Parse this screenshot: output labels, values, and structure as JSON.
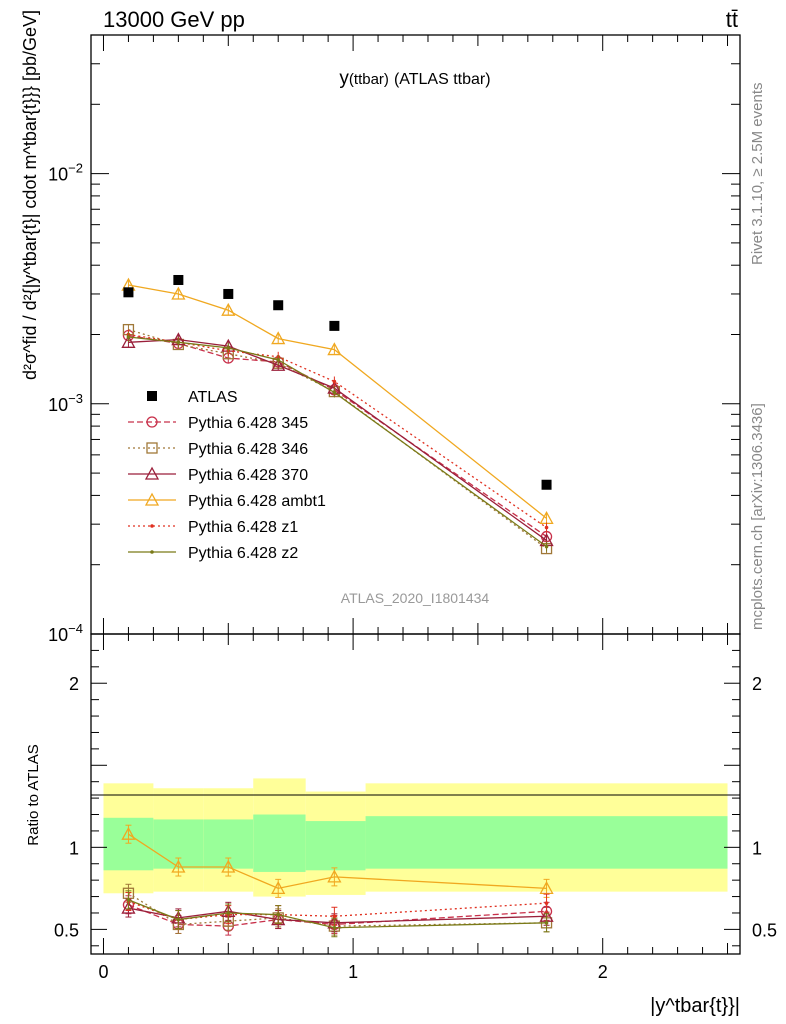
{
  "header": {
    "left": "13000 GeV pp",
    "right": "tt̄"
  },
  "side_labels": {
    "rivet": "Rivet 3.1.10, ≥ 2.5M events",
    "mcplots": "mcplots.cern.ch [arXiv:1306.3436]"
  },
  "chart_data": [
    {
      "type": "line",
      "panel": "main",
      "title_main": "y",
      "title_sub": "(ttbar)",
      "title_rest": "(ATLAS ttbar)",
      "analysis_label": "ATLAS_2020_I1801434",
      "ylabel": "d²σ^fid / d²{|y^tbar{t}| cdot m^tbar{t}}} [pb/GeV]",
      "yscale": "log",
      "ylim": [
        0.0001,
        0.04
      ],
      "xlim": [
        -0.05,
        2.55
      ],
      "ytick_labels": [
        "10^-4",
        "10^-3",
        "10^-2"
      ],
      "x": [
        0.1,
        0.3,
        0.5,
        0.7,
        0.925,
        1.775
      ],
      "legend_placement": "center-left",
      "series": [
        {
          "name": "ATLAS",
          "color": "#000000",
          "marker": "filled-square",
          "style": "none",
          "values": [
            0.00305,
            0.00345,
            0.003,
            0.00268,
            0.00218,
            0.000445
          ]
        },
        {
          "name": "Pythia 6.428 345",
          "color": "#c8304a",
          "marker": "open-circle",
          "style": "dashed",
          "values": [
            0.00198,
            0.00183,
            0.00158,
            0.00152,
            0.00115,
            0.000265
          ]
        },
        {
          "name": "Pythia 6.428 346",
          "color": "#a07838",
          "marker": "open-square",
          "style": "dotted",
          "values": [
            0.0021,
            0.00181,
            0.00165,
            0.0015,
            0.00113,
            0.000235
          ]
        },
        {
          "name": "Pythia 6.428 370",
          "color": "#9a1f3a",
          "marker": "open-triangle",
          "style": "solid",
          "values": [
            0.00185,
            0.0019,
            0.00178,
            0.00147,
            0.00117,
            0.000255
          ]
        },
        {
          "name": "Pythia 6.428 ambt1",
          "color": "#f0a820",
          "marker": "open-triangle",
          "style": "solid",
          "values": [
            0.00328,
            0.003,
            0.00255,
            0.00192,
            0.00172,
            0.000318
          ]
        },
        {
          "name": "Pythia 6.428 z1",
          "color": "#e03020",
          "marker": "small-dot",
          "style": "dotted",
          "values": [
            0.002,
            0.00185,
            0.0017,
            0.0016,
            0.00125,
            0.00029
          ]
        },
        {
          "name": "Pythia 6.428 z2",
          "color": "#7a7a18",
          "marker": "small-dot",
          "style": "solid",
          "values": [
            0.00195,
            0.00185,
            0.00175,
            0.00155,
            0.00112,
            0.00024
          ]
        }
      ]
    },
    {
      "type": "line",
      "panel": "ratio",
      "ylabel": "Ratio to ATLAS",
      "ylim": [
        0.35,
        2.3
      ],
      "xlim": [
        -0.05,
        2.55
      ],
      "ytick_labels": [
        "0.5",
        "1",
        "2"
      ],
      "xtick_labels": [
        "0",
        "1",
        "2"
      ],
      "xlabel": "|y^tbar{t}}|",
      "x": [
        0.1,
        0.3,
        0.5,
        0.7,
        0.925,
        1.775
      ],
      "bands": {
        "yellow_color": "#ffff99",
        "green_color": "#99ff99",
        "bins": [
          {
            "lo": 0.0,
            "hi": 0.2,
            "yellow": [
              0.72,
              1.39
            ],
            "green": [
              0.86,
              1.18
            ]
          },
          {
            "lo": 0.2,
            "hi": 0.4,
            "yellow": [
              0.73,
              1.36
            ],
            "green": [
              0.87,
              1.17
            ]
          },
          {
            "lo": 0.4,
            "hi": 0.6,
            "yellow": [
              0.73,
              1.36
            ],
            "green": [
              0.87,
              1.17
            ]
          },
          {
            "lo": 0.6,
            "hi": 0.81,
            "yellow": [
              0.7,
              1.42
            ],
            "green": [
              0.85,
              1.2
            ]
          },
          {
            "lo": 0.81,
            "hi": 1.05,
            "yellow": [
              0.71,
              1.34
            ],
            "green": [
              0.86,
              1.16
            ]
          },
          {
            "lo": 1.05,
            "hi": 2.5,
            "yellow": [
              0.73,
              1.39
            ],
            "green": [
              0.87,
              1.19
            ]
          }
        ]
      },
      "series": [
        {
          "name": "Pythia 6.428 345",
          "values": [
            0.65,
            0.53,
            0.52,
            0.56,
            0.53,
            0.61
          ]
        },
        {
          "name": "Pythia 6.428 346",
          "values": [
            0.72,
            0.53,
            0.55,
            0.57,
            0.52,
            0.54
          ]
        },
        {
          "name": "Pythia 6.428 370",
          "values": [
            0.63,
            0.57,
            0.61,
            0.56,
            0.54,
            0.58
          ]
        },
        {
          "name": "Pythia 6.428 ambt1",
          "values": [
            1.08,
            0.88,
            0.88,
            0.75,
            0.82,
            0.75
          ]
        },
        {
          "name": "Pythia 6.428 z1",
          "values": [
            0.67,
            0.56,
            0.59,
            0.59,
            0.58,
            0.66
          ]
        },
        {
          "name": "Pythia 6.428 z2",
          "values": [
            0.68,
            0.56,
            0.6,
            0.59,
            0.51,
            0.54
          ]
        }
      ]
    }
  ]
}
